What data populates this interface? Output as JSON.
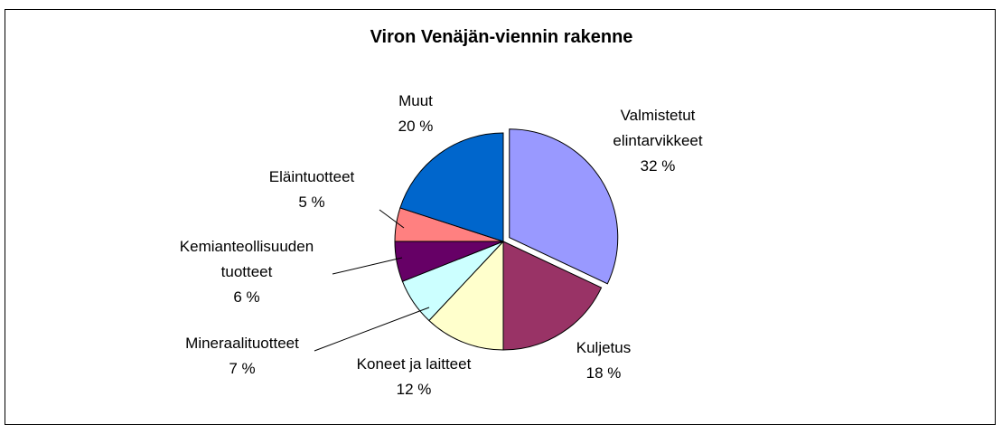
{
  "chart_data": {
    "type": "pie",
    "title": "Viron Venäjän-viennin rakenne",
    "categories": [
      "Valmistetut elintarvikkeet",
      "Kuljetus",
      "Koneet ja laitteet",
      "Mineraalituotteet",
      "Kemianteollisuuden tuotteet",
      "Eläintuotteet",
      "Muut"
    ],
    "values": [
      32,
      18,
      12,
      7,
      6,
      5,
      20
    ],
    "value_labels": [
      "32 %",
      "18 %",
      "12 %",
      "7 %",
      "6 %",
      "5 %",
      "20 %"
    ],
    "colors": [
      "#9999ff",
      "#993366",
      "#ffffcc",
      "#ccffff",
      "#660066",
      "#ff8080",
      "#0066cc"
    ]
  }
}
